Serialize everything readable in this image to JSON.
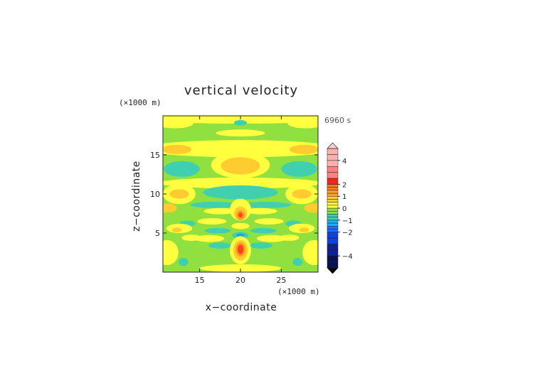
{
  "chart_data": {
    "type": "heatmap",
    "title": "vertical velocity",
    "xlabel": "x−coordinate",
    "ylabel": "z−coordinate",
    "x_unit": "(×1000 m)",
    "y_unit": "(×1000 m)",
    "time_label": "6960 s",
    "xlim": [
      10.5,
      29.5
    ],
    "ylim": [
      0,
      20
    ],
    "xticks": [
      15,
      20,
      25
    ],
    "yticks": [
      5,
      10,
      15
    ],
    "colorbar": {
      "ticks": [
        4,
        2,
        1,
        0,
        -1,
        -2,
        -4
      ],
      "range": [
        -5,
        5
      ],
      "levels": [
        -5,
        -4.5,
        -4,
        -3.5,
        -3,
        -2.5,
        -2,
        -1.75,
        -1.5,
        -1.25,
        -1,
        -0.75,
        -0.5,
        -0.25,
        0,
        0.25,
        0.5,
        0.75,
        1,
        1.25,
        1.5,
        1.75,
        2,
        2.5,
        3,
        3.5,
        4,
        4.5,
        5
      ],
      "extend": "both"
    },
    "field_features": [
      {
        "x": 20,
        "z": 2.9,
        "w": 2.6,
        "desc": "strong updraft core"
      },
      {
        "x": 20,
        "z": 7.3,
        "w": 1.9,
        "desc": "updraft"
      },
      {
        "x": 20,
        "z": 4.7,
        "w": -1.2,
        "desc": "downdraft"
      },
      {
        "x": 20,
        "z": 13.6,
        "w": 0.6,
        "desc": "weak updraft"
      },
      {
        "x": 20,
        "z": 10.3,
        "w": -0.4,
        "desc": "weak downdraft band"
      },
      {
        "x": 20,
        "z": 19.0,
        "w": -0.5,
        "desc": "weak downdraft"
      }
    ],
    "grid": false
  },
  "colors": {
    "neutral": "#90e040",
    "positive": [
      "#ffff40",
      "#ffcc30",
      "#ff9a20",
      "#ff4020",
      "#ff9a9a"
    ],
    "negative": [
      "#40d0b0",
      "#20a0f0",
      "#1050ff",
      "#102090",
      "#000000"
    ]
  }
}
